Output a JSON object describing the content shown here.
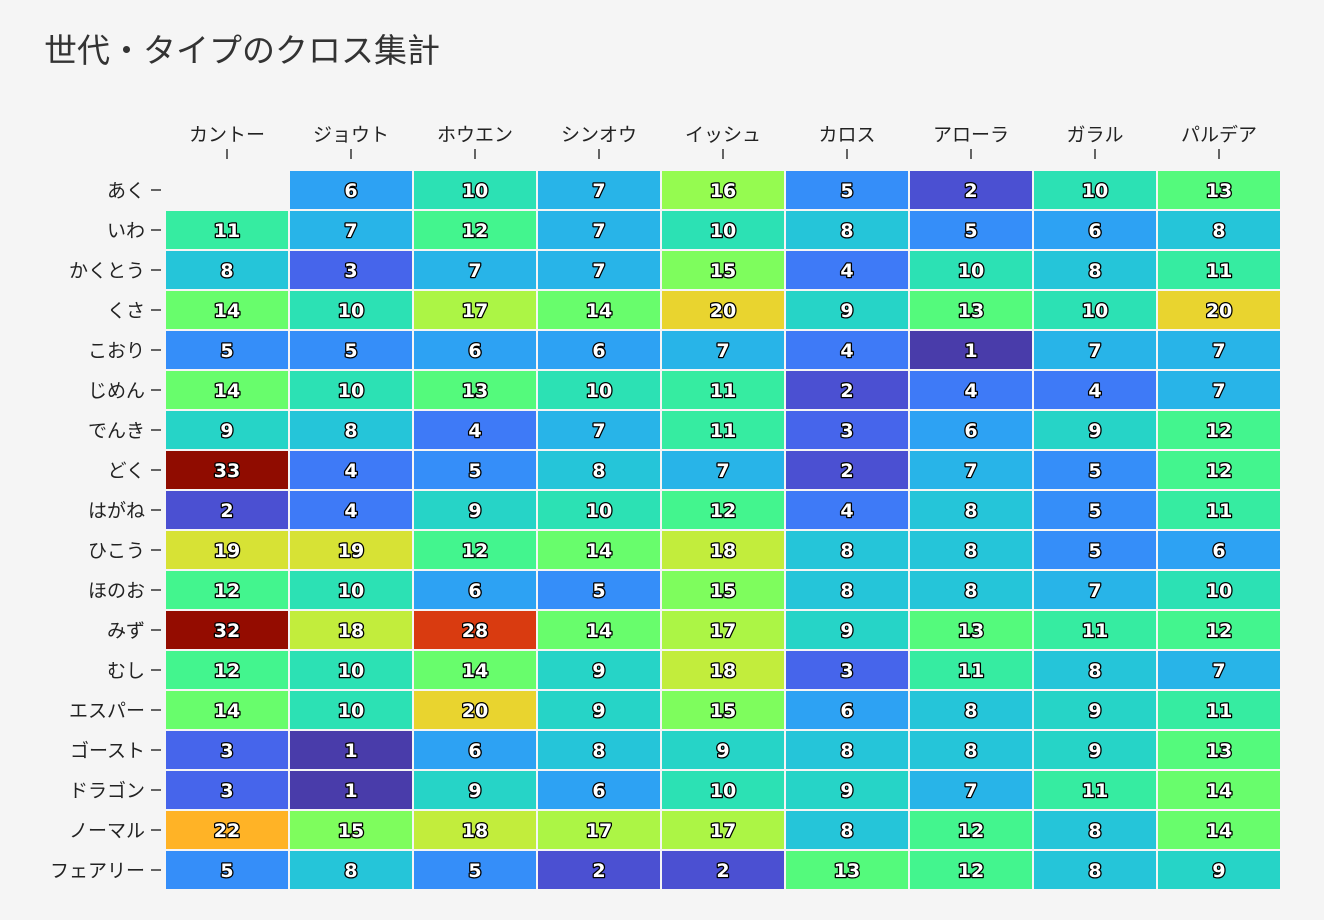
{
  "chart_data": {
    "type": "heatmap",
    "title": "世代・タイプのクロス集計",
    "x_categories": [
      "カントー",
      "ジョウト",
      "ホウエン",
      "シンオウ",
      "イッシュ",
      "カロス",
      "アローラ",
      "ガラル",
      "パルデア"
    ],
    "y_categories": [
      "あく",
      "いわ",
      "かくとう",
      "くさ",
      "こおり",
      "じめん",
      "でんき",
      "どく",
      "はがね",
      "ひこう",
      "ほのお",
      "みず",
      "むし",
      "エスパー",
      "ゴースト",
      "ドラゴン",
      "ノーマル",
      "フェアリー"
    ],
    "values": [
      [
        null,
        6,
        10,
        7,
        16,
        5,
        2,
        10,
        13
      ],
      [
        11,
        7,
        12,
        7,
        10,
        8,
        5,
        6,
        8
      ],
      [
        8,
        3,
        7,
        7,
        15,
        4,
        10,
        8,
        11
      ],
      [
        14,
        10,
        17,
        14,
        20,
        9,
        13,
        10,
        20
      ],
      [
        5,
        5,
        6,
        6,
        7,
        4,
        1,
        7,
        7
      ],
      [
        14,
        10,
        13,
        10,
        11,
        2,
        4,
        4,
        7
      ],
      [
        9,
        8,
        4,
        7,
        11,
        3,
        6,
        9,
        12
      ],
      [
        33,
        4,
        5,
        8,
        7,
        2,
        7,
        5,
        12
      ],
      [
        2,
        4,
        9,
        10,
        12,
        4,
        8,
        5,
        11
      ],
      [
        19,
        19,
        12,
        14,
        18,
        8,
        8,
        5,
        6
      ],
      [
        12,
        10,
        6,
        5,
        15,
        8,
        8,
        7,
        10
      ],
      [
        32,
        18,
        28,
        14,
        17,
        9,
        13,
        11,
        12
      ],
      [
        12,
        10,
        14,
        9,
        18,
        3,
        11,
        8,
        7
      ],
      [
        14,
        10,
        20,
        9,
        15,
        6,
        8,
        9,
        11
      ],
      [
        3,
        1,
        6,
        8,
        9,
        8,
        8,
        9,
        13
      ],
      [
        3,
        1,
        9,
        6,
        10,
        9,
        7,
        11,
        14
      ],
      [
        22,
        15,
        18,
        17,
        17,
        8,
        12,
        8,
        14
      ],
      [
        5,
        8,
        5,
        2,
        2,
        13,
        12,
        8,
        9
      ]
    ],
    "color_scale": "turbo",
    "value_range": [
      1,
      33
    ],
    "legend": "none",
    "grid": false
  }
}
